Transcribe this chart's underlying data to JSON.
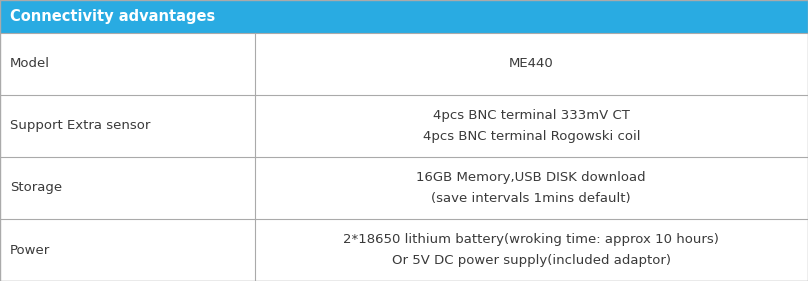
{
  "title": "Connectivity advantages",
  "title_bg": "#29ABE2",
  "title_color": "#FFFFFF",
  "title_fontsize": 10.5,
  "col_split": 0.315,
  "rows": [
    {
      "label": "Model",
      "value": "ME440"
    },
    {
      "label": "Support Extra sensor",
      "value": "4pcs BNC terminal 333mV CT\n4pcs BNC terminal Rogowski coil"
    },
    {
      "label": "Storage",
      "value": "16GB Memory,USB DISK download\n(save intervals 1mins default)"
    },
    {
      "label": "Power",
      "value": "2*18650 lithium battery(wroking time: approx 10 hours)\nOr 5V DC power supply(included adaptor)"
    }
  ],
  "border_color": "#AAAAAA",
  "text_color": "#3A3A3A",
  "label_color": "#3A3A3A",
  "bg_color": "#FFFFFF",
  "label_fontsize": 9.5,
  "value_fontsize": 9.5,
  "fig_width": 8.08,
  "fig_height": 2.81,
  "dpi": 100
}
